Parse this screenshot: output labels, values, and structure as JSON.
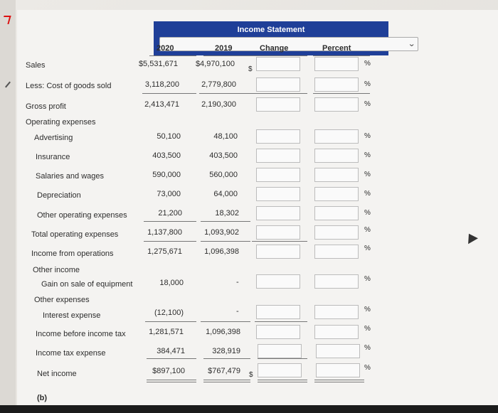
{
  "header": {
    "title": "Income Statement"
  },
  "columns": {
    "y2020": "2020",
    "y2019": "2019",
    "change": "Change",
    "percent": "Percent"
  },
  "rows": [
    {
      "label": "Sales",
      "v2020": "$5,531,671",
      "v2019": "$4,970,100",
      "pct": "%",
      "dollar": "$"
    },
    {
      "label": "Less: Cost of goods sold",
      "v2020": "3,118,200",
      "v2019": "2,779,800",
      "pct": "%"
    },
    {
      "label": "Gross profit",
      "v2020": "2,413,471",
      "v2019": "2,190,300",
      "pct": "%"
    },
    {
      "label": "Operating expenses"
    },
    {
      "label": "Advertising",
      "v2020": "50,100",
      "v2019": "48,100",
      "pct": "%"
    },
    {
      "label": "Insurance",
      "v2020": "403,500",
      "v2019": "403,500",
      "pct": "%"
    },
    {
      "label": "Salaries and wages",
      "v2020": "590,000",
      "v2019": "560,000",
      "pct": "%"
    },
    {
      "label": "Depreciation",
      "v2020": "73,000",
      "v2019": "64,000",
      "pct": "%"
    },
    {
      "label": "Other operating expenses",
      "v2020": "21,200",
      "v2019": "18,302",
      "pct": "%"
    },
    {
      "label": "Total operating expenses",
      "v2020": "1,137,800",
      "v2019": "1,093,902",
      "pct": "%"
    },
    {
      "label": "Income from operations",
      "v2020": "1,275,671",
      "v2019": "1,096,398",
      "pct": "%"
    },
    {
      "label": "Other income"
    },
    {
      "label": "Gain on sale of equipment",
      "v2020": "18,000",
      "v2019": "-",
      "pct": "%"
    },
    {
      "label": "Other expenses"
    },
    {
      "label": "Interest expense",
      "v2020": "(12,100)",
      "v2019": "-",
      "pct": "%"
    },
    {
      "label": "Income before income tax",
      "v2020": "1,281,571",
      "v2019": "1,096,398",
      "pct": "%"
    },
    {
      "label": "Income tax expense",
      "v2020": "384,471",
      "v2019": "328,919",
      "pct": "%"
    },
    {
      "label": "Net income",
      "v2020": "$897,100",
      "v2019": "$767,479",
      "pct": "%",
      "dollar": "$"
    }
  ],
  "footer": {
    "part_label": "(b)"
  },
  "icons": {
    "select_chevron": "chevron-down-icon"
  }
}
